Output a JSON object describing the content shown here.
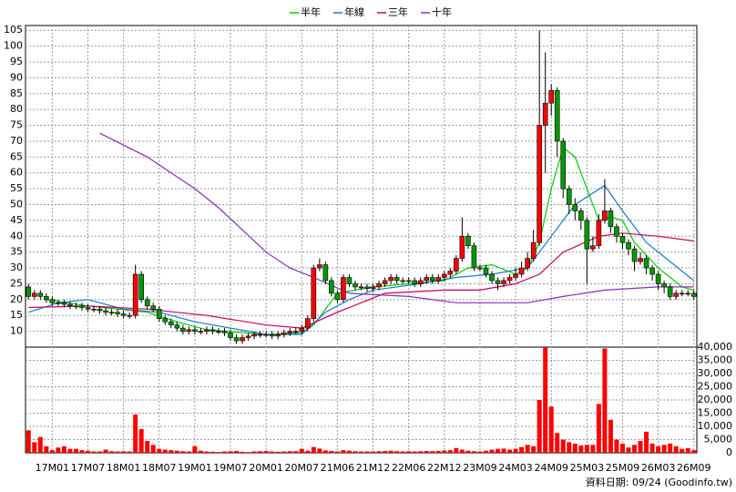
{
  "chart_data": {
    "type": "candlestick",
    "categories": [
      null,
      null,
      null,
      null,
      "17M01",
      null,
      null,
      null,
      null,
      null,
      "17M07",
      null,
      null,
      null,
      null,
      null,
      "18M01",
      null,
      null,
      null,
      null,
      null,
      "18M07",
      null,
      null,
      null,
      null,
      null,
      "19M01",
      null,
      null,
      null,
      null,
      null,
      "19M07",
      null,
      null,
      null,
      null,
      null,
      "20M01",
      null,
      null,
      null,
      null,
      null,
      "20M07",
      null,
      null,
      null,
      null,
      null,
      "21M06",
      null,
      null,
      null,
      null,
      null,
      "21M12",
      null,
      null,
      null,
      null,
      null,
      "22M06",
      null,
      null,
      null,
      null,
      null,
      "22M12",
      null,
      null,
      null,
      null,
      null,
      "23M09",
      null,
      null,
      null,
      null,
      null,
      "24M03",
      null,
      null,
      null,
      null,
      null,
      "24M09",
      null,
      null,
      null,
      null,
      null,
      "25M03",
      null,
      null,
      null,
      null,
      null,
      "25M09",
      null,
      null,
      null,
      null,
      null,
      "26M03",
      null,
      null,
      null,
      null,
      null,
      "26M09"
    ],
    "open": [
      24,
      21,
      22,
      21,
      20,
      19,
      19,
      18.5,
      18,
      18,
      17.5,
      17,
      17,
      16.5,
      16,
      16,
      15.5,
      15,
      15,
      28,
      20,
      18,
      17,
      14,
      13,
      12,
      11,
      10,
      10.5,
      10,
      10,
      10.5,
      10,
      10,
      9.5,
      8,
      7,
      8,
      8.5,
      9,
      9,
      9,
      8.5,
      9,
      9.5,
      10,
      10,
      11,
      14,
      30,
      31,
      26,
      22,
      20,
      27,
      25,
      24,
      24,
      23.5,
      24,
      25,
      26,
      27,
      26,
      26,
      26,
      25,
      26,
      27,
      26,
      27,
      28,
      29,
      33,
      40,
      37,
      30,
      30,
      28,
      26,
      25,
      26,
      27,
      28,
      30,
      33,
      38,
      75,
      82,
      86,
      70,
      55,
      50,
      48,
      45,
      36,
      37,
      45,
      48,
      43,
      40,
      38,
      36,
      32,
      33,
      30,
      28,
      25,
      24,
      21,
      22,
      22,
      22
    ],
    "high": [
      25,
      23,
      23,
      22,
      21,
      20,
      20,
      19.5,
      19,
      19,
      18.5,
      18,
      18,
      17.5,
      17,
      17,
      16.5,
      16,
      31,
      29,
      21,
      19,
      18,
      15,
      14,
      13,
      12,
      11.5,
      11.5,
      11,
      11.5,
      11.5,
      11,
      11,
      10.5,
      9,
      9,
      9.5,
      10,
      10,
      10,
      10,
      10,
      10.5,
      11,
      11,
      12,
      15,
      31,
      33,
      32,
      27,
      23,
      28,
      28,
      26,
      25,
      25,
      25,
      26,
      27,
      28,
      28,
      27,
      27,
      27,
      27,
      28,
      28,
      28,
      29,
      30,
      34,
      46,
      41,
      38,
      31,
      31,
      29,
      27,
      27,
      28,
      30,
      32,
      35,
      42,
      105,
      98,
      88,
      87,
      71,
      56,
      52,
      49,
      46,
      40,
      47,
      58,
      49,
      44,
      41,
      39,
      37,
      35,
      34,
      31,
      29,
      26,
      25,
      23,
      23,
      23,
      23
    ],
    "low": [
      20,
      20,
      20,
      19,
      18,
      18,
      17.5,
      17,
      17,
      16.5,
      16,
      16,
      15.5,
      15,
      15,
      14.5,
      14,
      14,
      14,
      19,
      17,
      16,
      13,
      12,
      11,
      10,
      9,
      9,
      9,
      9,
      9,
      9,
      9,
      8.5,
      7,
      6,
      6,
      7,
      7.5,
      8,
      8,
      7.5,
      7.5,
      8,
      8.5,
      9,
      9,
      10,
      13,
      29,
      25,
      21,
      19,
      19,
      24,
      23,
      23,
      22.5,
      22.5,
      23,
      24,
      25,
      25,
      25,
      25,
      24,
      24,
      25,
      25,
      25,
      26,
      27,
      28,
      32,
      36,
      29,
      29,
      27,
      25,
      23,
      24,
      25,
      26,
      27,
      29,
      32,
      37,
      60,
      78,
      65,
      52,
      47,
      45,
      42,
      25,
      35,
      36,
      44,
      41,
      38,
      36,
      34,
      29,
      31,
      28,
      26,
      23,
      22,
      20,
      20,
      21,
      21,
      20
    ],
    "close": [
      21,
      22,
      21,
      20,
      19,
      19,
      18.5,
      18,
      18,
      17.5,
      17,
      17,
      16.5,
      16,
      16,
      15.5,
      15,
      15,
      28,
      20,
      18,
      17,
      14,
      13,
      12,
      11,
      10,
      10.5,
      10,
      10,
      10.5,
      10,
      10,
      9.5,
      8,
      7,
      8,
      8.5,
      9,
      9,
      9,
      8.5,
      9,
      9.5,
      10,
      10,
      11,
      14,
      30,
      31,
      26,
      22,
      20,
      27,
      25,
      24,
      24,
      23.5,
      24,
      25,
      26,
      27,
      26,
      26,
      26,
      25,
      26,
      27,
      26,
      27,
      28,
      29,
      33,
      40,
      37,
      30,
      30,
      28,
      26,
      25,
      26,
      27,
      28,
      30,
      33,
      38,
      75,
      82,
      86,
      70,
      55,
      50,
      48,
      45,
      36,
      37,
      45,
      48,
      43,
      40,
      38,
      36,
      32,
      33,
      30,
      28,
      25,
      24,
      21,
      22,
      22,
      22,
      21
    ],
    "volume": [
      8500,
      4000,
      6000,
      2500,
      1000,
      2000,
      2500,
      1500,
      1500,
      1000,
      800,
      500,
      500,
      1200,
      600,
      500,
      600,
      500,
      14500,
      9000,
      4500,
      3000,
      1500,
      1200,
      1000,
      800,
      600,
      500,
      2500,
      800,
      500,
      400,
      300,
      500,
      600,
      700,
      400,
      300,
      500,
      600,
      700,
      500,
      400,
      500,
      600,
      600,
      1500,
      800,
      2200,
      1600,
      900,
      700,
      500,
      1000,
      800,
      600,
      500,
      500,
      500,
      600,
      700,
      800,
      600,
      500,
      600,
      500,
      600,
      700,
      600,
      700,
      900,
      1000,
      1800,
      1200,
      800,
      600,
      500,
      800,
      1200,
      1500,
      1600,
      1200,
      1500,
      2200,
      3000,
      2500,
      20000,
      40000,
      17500,
      7500,
      5000,
      4000,
      3500,
      2800,
      3000,
      3000,
      18500,
      39500,
      12500,
      5000,
      3500,
      2000,
      3000,
      4500,
      8000,
      3500,
      2500,
      3000,
      3500,
      2500,
      1500,
      1800,
      1000
    ],
    "up_color": "#ff0000",
    "down_color": "#009900",
    "volume_color": "#ff0000",
    "series": [
      {
        "name": "半年",
        "color": "#00cc00",
        "x": [
          3,
          10,
          20,
          25,
          30,
          40,
          46,
          48,
          52,
          58,
          70,
          74,
          78,
          82,
          84,
          86,
          88,
          90,
          92,
          94,
          96,
          98,
          100,
          102,
          106,
          110,
          112
        ],
        "values": [
          20,
          18,
          16,
          13,
          10.5,
          9,
          9.5,
          12,
          22,
          24,
          26,
          30,
          31,
          28,
          30,
          38,
          55,
          68,
          65,
          55,
          45,
          46,
          45,
          38,
          30,
          24,
          23
        ]
      },
      {
        "name": "年線",
        "color": "#1e78d2",
        "x": [
          0,
          5,
          10,
          16,
          22,
          28,
          34,
          40,
          46,
          50,
          54,
          58,
          66,
          72,
          78,
          84,
          88,
          92,
          97,
          100,
          104,
          108,
          112
        ],
        "values": [
          16,
          19,
          20,
          17,
          16,
          13,
          11,
          9,
          9,
          16,
          20,
          23,
          25,
          27,
          28,
          30,
          40,
          50,
          56,
          48,
          38,
          32,
          26
        ]
      },
      {
        "name": "三年",
        "color": "#c8005a",
        "x": [
          0,
          10,
          20,
          30,
          40,
          46,
          52,
          60,
          70,
          76,
          82,
          86,
          90,
          96,
          100,
          106,
          112
        ],
        "values": [
          17.5,
          18,
          17,
          15,
          12,
          11,
          16,
          22,
          23,
          23,
          25,
          28,
          35,
          40,
          41,
          40,
          38.5
        ]
      },
      {
        "name": "十年",
        "color": "#8a2bbe",
        "x": [
          12,
          20,
          28,
          32,
          36,
          40,
          44,
          48,
          54,
          64,
          72,
          84,
          90,
          97,
          106,
          112
        ],
        "values": [
          72.5,
          65,
          55,
          49,
          42,
          35,
          30,
          27,
          22,
          21,
          19,
          19,
          21,
          23,
          24,
          24
        ]
      }
    ],
    "ylim": [
      5,
      106.5
    ],
    "yticks": [
      10,
      15,
      20,
      25,
      30,
      35,
      40,
      45,
      50,
      55,
      60,
      65,
      70,
      75,
      80,
      85,
      90,
      95,
      100,
      105
    ],
    "y2lim": [
      0,
      40000
    ],
    "y2ticks": [
      0,
      {
        "value": 5000,
        "label": "5,000"
      },
      {
        "value": 10000,
        "label": "10,000"
      },
      {
        "value": 15000,
        "label": "15,000"
      },
      {
        "value": 20000,
        "label": "20,000"
      },
      {
        "value": 25000,
        "label": "25,000"
      },
      {
        "value": 30000,
        "label": "30,000"
      },
      {
        "value": 35000,
        "label": "35,000"
      },
      {
        "value": 40000,
        "label": "40,000"
      }
    ],
    "grid": true,
    "footnote": "資料日期: 09/24 (Goodinfo.tw)"
  }
}
